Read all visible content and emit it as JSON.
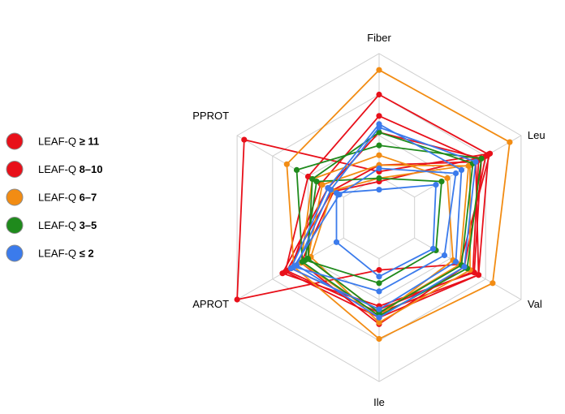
{
  "chart_data": {
    "type": "radar",
    "title": "",
    "axes": [
      "Fiber",
      "Leu",
      "Val",
      "Ile",
      "APROT",
      "PPROT"
    ],
    "rlim": [
      0,
      1
    ],
    "grid": true,
    "grid_levels": 4,
    "legend": {
      "placement": "left",
      "entries": [
        {
          "prefix": "LEAF-Q",
          "value": "≥ 11",
          "color": "#e8101a"
        },
        {
          "prefix": "LEAF-Q",
          "value": "8–10",
          "color": "#e8101a"
        },
        {
          "prefix": "LEAF-Q",
          "value": "6–7",
          "color": "#f28c13"
        },
        {
          "prefix": "LEAF-Q",
          "value": "3–5",
          "color": "#1f8a1c"
        },
        {
          "prefix": "LEAF-Q",
          "value": "≤ 2",
          "color": "#3b7bec"
        }
      ]
    },
    "series": [
      {
        "color": "#e8101a",
        "values": [
          0.75,
          0.77,
          0.7,
          0.61,
          0.66,
          0.5
        ]
      },
      {
        "color": "#e8101a",
        "values": [
          0.62,
          0.7,
          0.66,
          0.56,
          0.62,
          0.41
        ]
      },
      {
        "color": "#e8101a",
        "values": [
          0.52,
          0.72,
          0.67,
          0.54,
          0.68,
          0.36
        ]
      },
      {
        "color": "#e8101a",
        "values": [
          0.32,
          0.68,
          0.7,
          0.58,
          0.65,
          0.33
        ]
      },
      {
        "color": "#e8101a",
        "values": [
          0.28,
          0.78,
          0.57,
          0.32,
          1.0,
          0.95
        ]
      },
      {
        "color": "#e8101a",
        "values": [
          0.22,
          0.75,
          0.6,
          0.65,
          0.55,
          0.32
        ]
      },
      {
        "color": "#f28c13",
        "values": [
          0.9,
          0.92,
          0.8,
          0.74,
          0.6,
          0.65
        ]
      },
      {
        "color": "#f28c13",
        "values": [
          0.38,
          0.48,
          0.52,
          0.6,
          0.55,
          0.47
        ]
      },
      {
        "color": "#f28c13",
        "values": [
          0.32,
          0.63,
          0.57,
          0.58,
          0.5,
          0.4
        ]
      },
      {
        "color": "#f28c13",
        "values": [
          0.24,
          0.64,
          0.64,
          0.64,
          0.48,
          0.33
        ]
      },
      {
        "color": "#1f8a1c",
        "values": [
          0.44,
          0.72,
          0.62,
          0.6,
          0.54,
          0.58
        ]
      },
      {
        "color": "#1f8a1c",
        "values": [
          0.52,
          0.66,
          0.58,
          0.58,
          0.5,
          0.47
        ]
      },
      {
        "color": "#1f8a1c",
        "values": [
          0.24,
          0.44,
          0.4,
          0.4,
          0.52,
          0.44
        ]
      },
      {
        "color": "#3b7bec",
        "values": [
          0.55,
          0.68,
          0.6,
          0.61,
          0.58,
          0.34
        ]
      },
      {
        "color": "#3b7bec",
        "values": [
          0.57,
          0.58,
          0.54,
          0.56,
          0.62,
          0.36
        ]
      },
      {
        "color": "#3b7bec",
        "values": [
          0.17,
          0.4,
          0.38,
          0.36,
          0.3,
          0.3
        ]
      },
      {
        "color": "#3b7bec",
        "values": [
          0.3,
          0.54,
          0.46,
          0.45,
          0.6,
          0.28
        ]
      }
    ]
  }
}
